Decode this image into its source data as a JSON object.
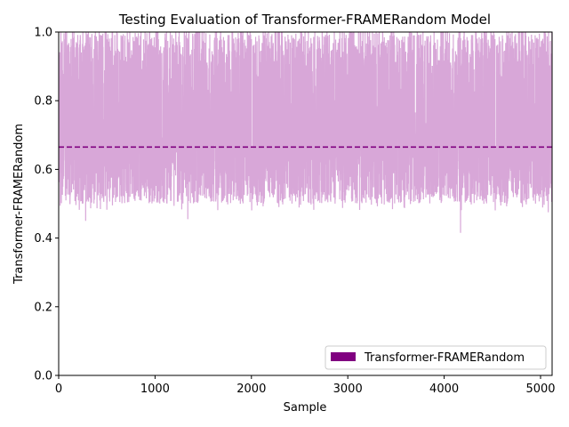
{
  "chart_data": {
    "type": "line",
    "title": "Testing Evaluation of Transformer-FRAMERandom Model",
    "xlabel": "Sample",
    "ylabel": "Transformer-FRAMERandom",
    "xlim": [
      0,
      5120
    ],
    "ylim": [
      0.0,
      1.0
    ],
    "xticks": [
      0,
      1000,
      2000,
      3000,
      4000,
      5000
    ],
    "xtick_labels": [
      "0",
      "1000",
      "2000",
      "3000",
      "4000",
      "5000"
    ],
    "yticks": [
      0.0,
      0.2,
      0.4,
      0.6,
      0.8,
      1.0
    ],
    "ytick_labels": [
      "0.0",
      "0.2",
      "0.4",
      "0.6",
      "0.8",
      "1.0"
    ],
    "grid": false,
    "legend": {
      "position": "lower-right",
      "entries": [
        "Transformer-FRAMERandom"
      ]
    },
    "series": [
      {
        "name": "Transformer-FRAMERandom",
        "color": "#d8a7d8",
        "n_samples": 5120,
        "mean": 0.665,
        "typical_min": 0.5,
        "typical_max": 1.0,
        "notable_lows": [
          {
            "x": 280,
            "y": 0.45
          },
          {
            "x": 1340,
            "y": 0.455
          },
          {
            "x": 4170,
            "y": 0.415
          },
          {
            "x": 5080,
            "y": 0.475
          }
        ]
      }
    ],
    "reference_lines": [
      {
        "type": "horizontal",
        "y": 0.665,
        "style": "dashed",
        "color": "#800080"
      }
    ],
    "legend_patch_color": "#800080"
  }
}
